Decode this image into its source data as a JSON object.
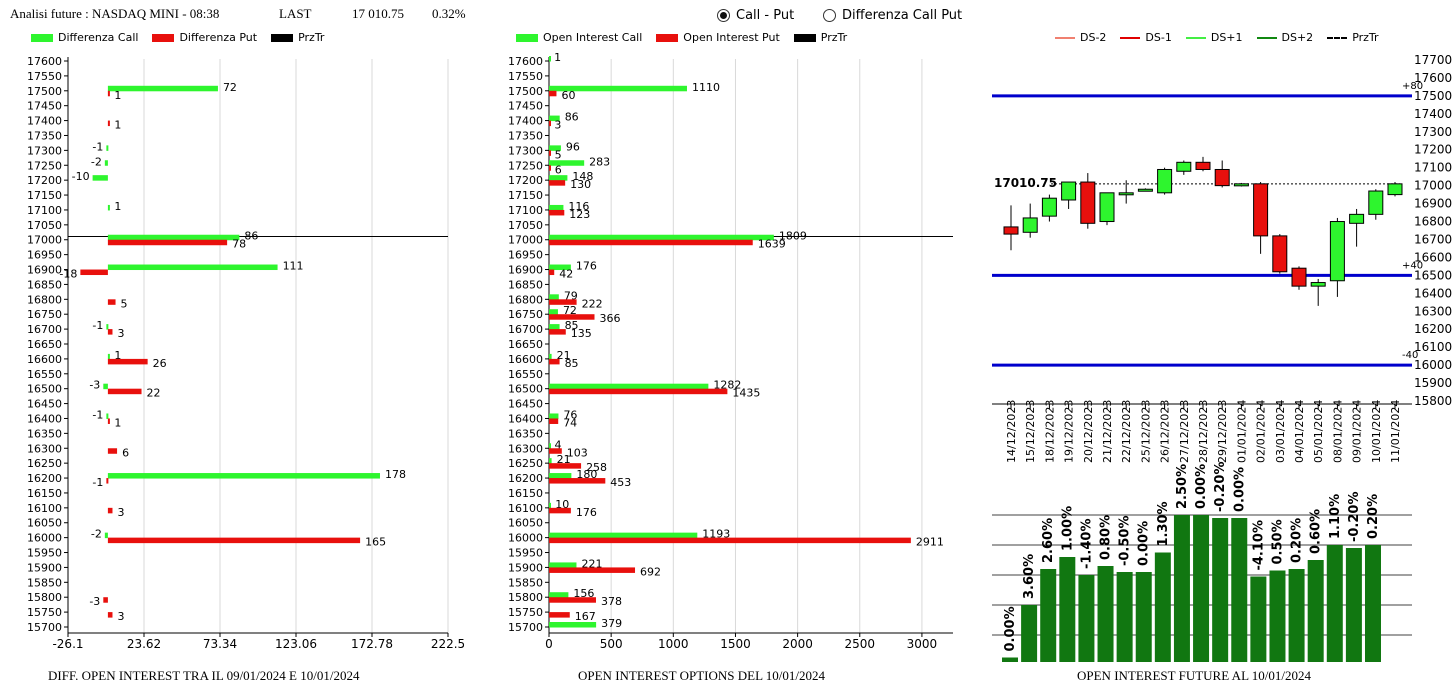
{
  "header": {
    "title": "Analisi future : NASDAQ MINI - 08:38",
    "last_label": "LAST",
    "last_value": "17 010.75",
    "last_change": "0.32%"
  },
  "mode_options": [
    {
      "label": "Call - Put",
      "selected": true
    },
    {
      "label": "Differenza Call Put",
      "selected": false
    }
  ],
  "colors": {
    "green": "#2ef52e",
    "red": "#e8100d",
    "black": "#000000",
    "dark_green": "#117711",
    "blue": "#0000cc",
    "ds_minus2": "#f08070",
    "ds_minus1": "#e00000",
    "ds_plus1": "#44ee44",
    "ds_plus2": "#118811"
  },
  "legends": {
    "diff": [
      "Differenza Call",
      "Differenza Put",
      "PrzTr"
    ],
    "oi": [
      "Open Interest Call",
      "Open Interest Put",
      "PrzTr"
    ],
    "candle": [
      "DS-2",
      "DS-1",
      "DS+1",
      "DS+2",
      "PrzTr"
    ]
  },
  "footers": {
    "diff": "DIFF. OPEN INTEREST TRA IL 09/01/2024 E 10/01/2024",
    "oi": "OPEN INTEREST OPTIONS DEL 10/01/2024",
    "future": "OPEN INTEREST FUTURE AL 10/01/2024"
  },
  "chart_data": [
    {
      "id": "diff",
      "type": "bar",
      "orientation": "horizontal",
      "strikes": [
        "17600",
        "17550",
        "17500",
        "17450",
        "17400",
        "17350",
        "17300",
        "17250",
        "17200",
        "17150",
        "17100",
        "17050",
        "17000",
        "16950",
        "16900",
        "16850",
        "16800",
        "16750",
        "16700",
        "16650",
        "16600",
        "16550",
        "16500",
        "16450",
        "16400",
        "16350",
        "16300",
        "16250",
        "16200",
        "16150",
        "16100",
        "16050",
        "16000",
        "15950",
        "15900",
        "15850",
        "15800",
        "15750",
        "15700"
      ],
      "x_ticks": [
        "-26.1",
        "23.62",
        "73.34",
        "123.06",
        "172.78",
        "222.5"
      ],
      "xlim": [
        -26.1,
        222.5
      ],
      "price_line": 17010.75,
      "series": [
        {
          "name": "Differenza Call",
          "color": "green",
          "labels": true,
          "points": [
            [
              17500,
              72
            ],
            [
              17300,
              -1
            ],
            [
              17250,
              -2
            ],
            [
              17200,
              -10
            ],
            [
              17100,
              1
            ],
            [
              17000,
              86
            ],
            [
              16900,
              111
            ],
            [
              16700,
              -1
            ],
            [
              16600,
              1
            ],
            [
              16500,
              -3
            ],
            [
              16400,
              -1
            ],
            [
              16200,
              178
            ],
            [
              16000,
              -2
            ]
          ]
        },
        {
          "name": "Differenza Put",
          "color": "red",
          "labels": true,
          "points": [
            [
              17500,
              1
            ],
            [
              17400,
              1
            ],
            [
              17000,
              78
            ],
            [
              16900,
              -18
            ],
            [
              16800,
              5
            ],
            [
              16700,
              3
            ],
            [
              16600,
              26
            ],
            [
              16500,
              22
            ],
            [
              16400,
              1
            ],
            [
              16300,
              6
            ],
            [
              16200,
              -1
            ],
            [
              16100,
              3
            ],
            [
              16000,
              165
            ],
            [
              15800,
              -3
            ],
            [
              15750,
              3
            ]
          ]
        }
      ]
    },
    {
      "id": "oi",
      "type": "bar",
      "orientation": "horizontal",
      "strikes": [
        "17600",
        "17550",
        "17500",
        "17450",
        "17400",
        "17350",
        "17300",
        "17250",
        "17200",
        "17150",
        "17100",
        "17050",
        "17000",
        "16950",
        "16900",
        "16850",
        "16800",
        "16750",
        "16700",
        "16650",
        "16600",
        "16550",
        "16500",
        "16450",
        "16400",
        "16350",
        "16300",
        "16250",
        "16200",
        "16150",
        "16100",
        "16050",
        "16000",
        "15950",
        "15900",
        "15850",
        "15800",
        "15750",
        "15700"
      ],
      "x_ticks": [
        "0",
        "500",
        "1000",
        "1500",
        "2000",
        "2500",
        "3000"
      ],
      "xlim": [
        0,
        3250
      ],
      "price_line": 17010.75,
      "series": [
        {
          "name": "Open Interest Call",
          "color": "green",
          "points": [
            [
              17600,
              1
            ],
            [
              17500,
              1110
            ],
            [
              17400,
              86
            ],
            [
              17300,
              96
            ],
            [
              17250,
              283
            ],
            [
              17200,
              148
            ],
            [
              17100,
              116
            ],
            [
              17000,
              1809
            ],
            [
              16900,
              176
            ],
            [
              16800,
              79
            ],
            [
              16750,
              72
            ],
            [
              16700,
              85
            ],
            [
              16600,
              21
            ],
            [
              16500,
              1282
            ],
            [
              16400,
              76
            ],
            [
              16300,
              4
            ],
            [
              16250,
              21
            ],
            [
              16200,
              180
            ],
            [
              16100,
              10
            ],
            [
              16000,
              1193
            ],
            [
              15900,
              221
            ],
            [
              15800,
              156
            ],
            [
              15700,
              379
            ]
          ]
        },
        {
          "name": "Open Interest Put",
          "color": "red",
          "points": [
            [
              17500,
              60
            ],
            [
              17400,
              3
            ],
            [
              17300,
              5
            ],
            [
              17250,
              6
            ],
            [
              17200,
              130
            ],
            [
              17100,
              123
            ],
            [
              17000,
              1639
            ],
            [
              16900,
              42
            ],
            [
              16800,
              222
            ],
            [
              16750,
              366
            ],
            [
              16700,
              135
            ],
            [
              16600,
              85
            ],
            [
              16500,
              1435
            ],
            [
              16400,
              74
            ],
            [
              16300,
              103
            ],
            [
              16250,
              258
            ],
            [
              16200,
              453
            ],
            [
              16100,
              176
            ],
            [
              16000,
              2911
            ],
            [
              15900,
              692
            ],
            [
              15800,
              378
            ],
            [
              15750,
              167
            ]
          ]
        }
      ]
    },
    {
      "id": "candles",
      "type": "candlestick",
      "dates": [
        "14/12/2023",
        "15/12/2023",
        "18/12/2023",
        "19/12/2023",
        "20/12/2023",
        "21/12/2023",
        "22/12/2023",
        "25/12/2023",
        "26/12/2023",
        "27/12/2023",
        "28/12/2023",
        "29/12/2023",
        "01/01/2024",
        "02/01/2024",
        "03/01/2024",
        "04/01/2024",
        "05/01/2024",
        "08/01/2024",
        "09/01/2024",
        "10/01/2024",
        "11/01/2024"
      ],
      "ohlc": [
        [
          16770,
          16890,
          16640,
          16730
        ],
        [
          16740,
          16900,
          16710,
          16820
        ],
        [
          16830,
          16950,
          16800,
          16930
        ],
        [
          16920,
          17020,
          16870,
          17020
        ],
        [
          17020,
          17070,
          16760,
          16790
        ],
        [
          16800,
          16960,
          16780,
          16960
        ],
        [
          16950,
          17030,
          16900,
          16960
        ],
        [
          16980,
          16985,
          16975,
          16980
        ],
        [
          16960,
          17100,
          16950,
          17090
        ],
        [
          17080,
          17140,
          17060,
          17130
        ],
        [
          17130,
          17160,
          17080,
          17090
        ],
        [
          17090,
          17140,
          16990,
          17000
        ],
        [
          17010,
          17015,
          16995,
          17010
        ],
        [
          17010,
          17020,
          16620,
          16720
        ],
        [
          16720,
          16730,
          16510,
          16520
        ],
        [
          16540,
          16550,
          16420,
          16440
        ],
        [
          16440,
          16480,
          16330,
          16460
        ],
        [
          16470,
          16820,
          16380,
          16800
        ],
        [
          16790,
          16870,
          16660,
          16840
        ],
        [
          16840,
          16980,
          16810,
          16970
        ],
        [
          16950,
          17020,
          16940,
          17010
        ]
      ],
      "price_label": "17010.75",
      "y_ticks": [
        "17700",
        "17600",
        "17500",
        "17400",
        "17300",
        "17200",
        "17100",
        "17000",
        "16900",
        "16800",
        "16700",
        "16600",
        "16500",
        "16400",
        "16300",
        "16200",
        "16100",
        "16000",
        "15900",
        "15800"
      ],
      "ylim": [
        15800,
        17700
      ],
      "levels": [
        {
          "value": 17500,
          "label": "+80"
        },
        {
          "value": 16500,
          "label": "+40"
        },
        {
          "value": 16000,
          "label": "-40"
        }
      ]
    },
    {
      "id": "future_oi",
      "type": "bar",
      "labels": [
        "0.00%",
        "3.60%",
        "2.60%",
        "1.00%",
        "-1.40%",
        "0.80%",
        "-0.50%",
        "0.00%",
        "1.30%",
        "2.50%",
        "0.00%",
        "-0.20%",
        "0.00%",
        "-4.10%",
        "0.50%",
        "0.20%",
        "0.60%",
        "1.10%",
        "-0.20%",
        "0.20%"
      ],
      "values": [
        0.03,
        0.38,
        0.62,
        0.7,
        0.58,
        0.64,
        0.6,
        0.6,
        0.73,
        0.98,
        0.98,
        0.96,
        0.96,
        0.57,
        0.61,
        0.62,
        0.68,
        0.78,
        0.76,
        0.78
      ]
    }
  ]
}
